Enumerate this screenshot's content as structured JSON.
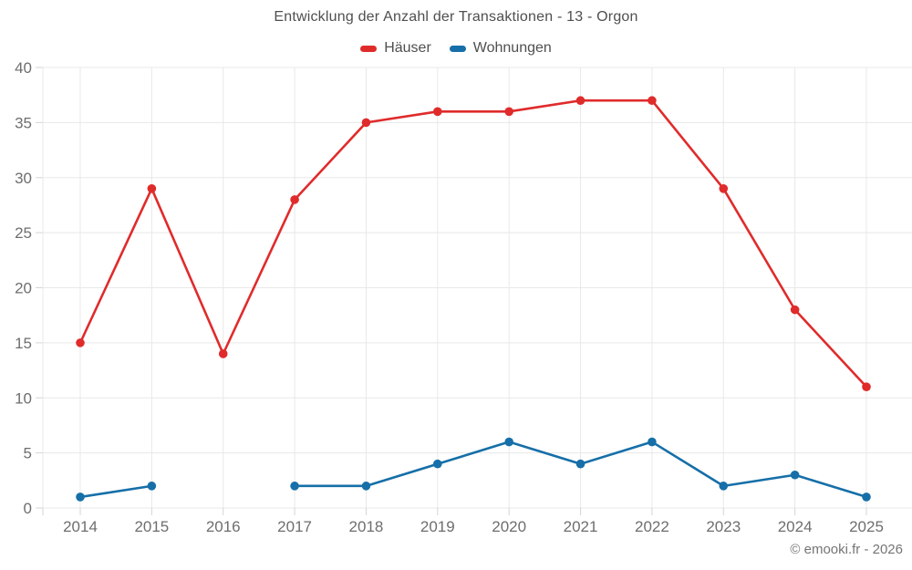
{
  "chart_data": {
    "type": "line",
    "title": "Entwicklung der Anzahl der Transaktionen - 13 - Orgon",
    "categories": [
      "2014",
      "2015",
      "2016",
      "2017",
      "2018",
      "2019",
      "2020",
      "2021",
      "2022",
      "2023",
      "2024",
      "2025"
    ],
    "series": [
      {
        "name": "Häuser",
        "color": "#e02b2b",
        "values": [
          15,
          29,
          14,
          28,
          35,
          36,
          36,
          37,
          37,
          29,
          18,
          11
        ]
      },
      {
        "name": "Wohnungen",
        "color": "#166fa8",
        "values": [
          1,
          2,
          null,
          2,
          2,
          4,
          6,
          4,
          6,
          2,
          3,
          1
        ]
      }
    ],
    "ylim": [
      0,
      40
    ],
    "yticks": [
      0,
      5,
      10,
      15,
      20,
      25,
      30,
      35,
      40
    ],
    "grid": true,
    "legend_position": "top"
  },
  "footer": {
    "credit": "© emooki.fr - 2026"
  },
  "colors": {
    "haeuser": "#e02b2b",
    "wohnungen": "#166fa8",
    "grid": "#e8e8e8",
    "tick": "#d5d5d5",
    "title_text": "#4f4f4f",
    "axis_text": "#6e6e6e",
    "footer_text": "#757575",
    "background": "#ffffff"
  }
}
